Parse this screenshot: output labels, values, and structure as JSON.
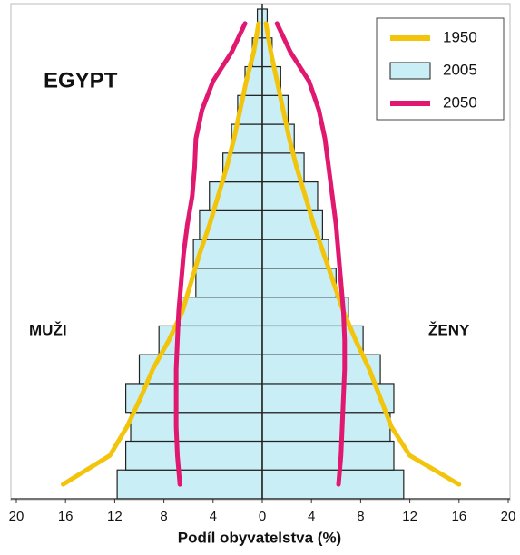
{
  "chart_data": {
    "type": "population-pyramid",
    "title": "EGYPT",
    "left_label": "MUŽI",
    "right_label": "ŽENY",
    "x_label": "Podíl obyvatelstva (%)",
    "categories": [
      null,
      null,
      null,
      null,
      null,
      null,
      null,
      null,
      null,
      null,
      null,
      null,
      null,
      null,
      null,
      null,
      null
    ],
    "xlim": [
      -20,
      20
    ],
    "xticks": [
      {
        "value": -20,
        "label": "20"
      },
      {
        "value": -16,
        "label": "16"
      },
      {
        "value": -12,
        "label": "12"
      },
      {
        "value": -8,
        "label": "8"
      },
      {
        "value": -4,
        "label": "4"
      },
      0,
      4,
      8,
      12,
      16,
      20
    ],
    "legend": "top-right",
    "series": [
      {
        "name": "1950",
        "color": "#f2c40c",
        "style": "line",
        "male": [
          16.2,
          12.4,
          11,
          9.9,
          8.9,
          7.6,
          6.5,
          5.8,
          5.1,
          4.3,
          3.6,
          2.9,
          2.3,
          1.8,
          1.3,
          0.7,
          0.3
        ],
        "female": [
          16,
          12,
          10.5,
          9.6,
          8.7,
          7.6,
          6.6,
          5.8,
          5,
          4.2,
          3.5,
          2.8,
          2.2,
          1.7,
          1.2,
          0.7,
          0.3
        ]
      },
      {
        "name": "2005",
        "color": "#c9eef6",
        "style": "bar",
        "male": [
          11.8,
          11.1,
          10.7,
          11.1,
          10,
          8.4,
          6.7,
          5.4,
          5.6,
          5.1,
          4.3,
          3.2,
          2.5,
          2,
          1.4,
          0.8,
          0.4
        ],
        "female": [
          11.5,
          10.7,
          10.4,
          10.7,
          9.6,
          8.2,
          7,
          6,
          5.4,
          4.9,
          4.5,
          3.4,
          2.6,
          2.1,
          1.5,
          0.8,
          0.4
        ]
      },
      {
        "name": "2050",
        "color": "#e0186f",
        "style": "line",
        "male": [
          6.7,
          6.9,
          7,
          7,
          7,
          6.9,
          6.8,
          6.6,
          6.4,
          6.1,
          5.7,
          5.5,
          5.4,
          4.9,
          4,
          2.5,
          1.4
        ],
        "female": [
          6.2,
          6.4,
          6.5,
          6.6,
          6.7,
          6.7,
          6.6,
          6.4,
          6.2,
          6,
          5.7,
          5.4,
          5.1,
          4.6,
          3.8,
          2.3,
          1.2
        ]
      }
    ]
  }
}
